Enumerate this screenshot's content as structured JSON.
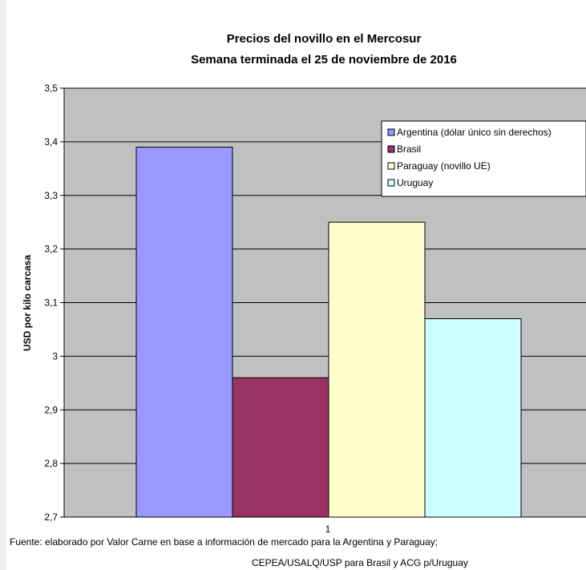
{
  "chart_data": {
    "type": "bar",
    "title": "Precios del novillo en el Mercosur",
    "subtitle": "Semana terminada el 25 de noviembre de 2016",
    "ylabel": "USD por kilo carcasa",
    "xlabel": "",
    "categories": [
      "1"
    ],
    "ylim": [
      2.7,
      3.5
    ],
    "yticks": [
      "2,7",
      "2,8",
      "2,9",
      "3",
      "3,1",
      "3,2",
      "3,3",
      "3,4",
      "3,5"
    ],
    "grid": true,
    "legend_position": "top-right",
    "series": [
      {
        "name": "Argentina (dólar único sin derechos)",
        "values": [
          3.39
        ],
        "color": "#9999ff"
      },
      {
        "name": "Brasil",
        "values": [
          2.96
        ],
        "color": "#993366"
      },
      {
        "name": "Paraguay (novillo UE)",
        "values": [
          3.25
        ],
        "color": "#ffffcc"
      },
      {
        "name": "Uruguay",
        "values": [
          3.07
        ],
        "color": "#ccffff"
      }
    ],
    "plot_background": "#c0c0c0"
  },
  "footer": {
    "line1": "Fuente: elaborado por Valor Carne en base a información de mercado para la Argentina y Paraguay;",
    "line2": "CEPEA/USALQ/USP para Brasil y ACG  p/Uruguay"
  }
}
